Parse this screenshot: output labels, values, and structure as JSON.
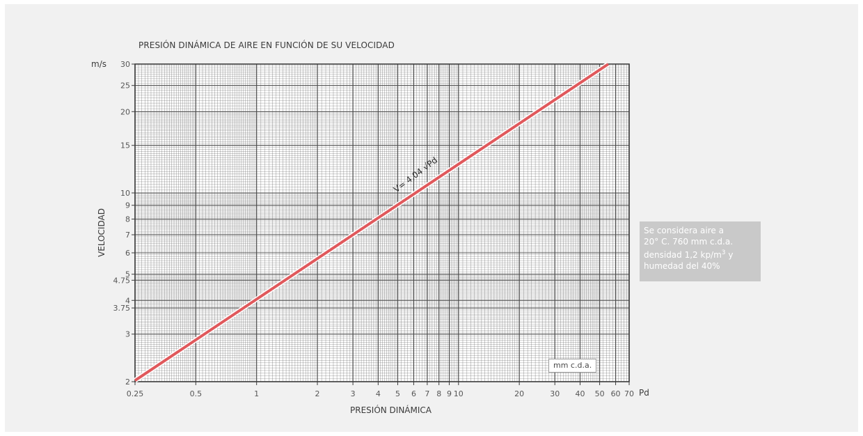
{
  "chart_data": {
    "type": "line",
    "title": "PRESIÓN DINÁMICA DE AIRE EN FUNCIÓN DE SU VELOCIDAD",
    "xlabel": "PRESIÓN DINÁMICA",
    "ylabel": "VELOCIDAD",
    "x_unit": "Pd",
    "y_unit": "m/s",
    "x_scale": "log",
    "y_scale": "log",
    "xlim": [
      0.25,
      70
    ],
    "ylim": [
      2,
      30
    ],
    "grid": true,
    "x_ticks": [
      0.25,
      0.5,
      1,
      2,
      3,
      4,
      5,
      6,
      7,
      8,
      9,
      10,
      20,
      30,
      40,
      50,
      60,
      70
    ],
    "x_tick_labels": [
      "0.25",
      "0.5",
      "1",
      "2",
      "3",
      "4",
      "5",
      "6",
      "7",
      "8",
      "9",
      "10",
      "20",
      "30",
      "40",
      "50",
      "60",
      "70"
    ],
    "y_ticks": [
      2,
      3,
      3.75,
      4,
      4.75,
      5,
      6,
      7,
      8,
      9,
      10,
      15,
      20,
      25,
      30
    ],
    "y_tick_labels": [
      "2",
      "3",
      "3.75",
      "4",
      "4.75",
      "5",
      "6",
      "7",
      "8",
      "9",
      "10",
      "15",
      "20",
      "25",
      "30"
    ],
    "series": [
      {
        "x": [
          0.25,
          1,
          4,
          10,
          20,
          40,
          55.15
        ],
        "y": [
          2.02,
          4.04,
          8.08,
          12.78,
          18.07,
          25.55,
          30
        ],
        "color": "#e0595c"
      }
    ],
    "annotation": "V= 4,04 √Pd",
    "unit_box": "mm c.d.a."
  },
  "note": {
    "lines": [
      "Se considera aire a",
      "20° C. 760 mm c.d.a.",
      "densidad 1,2 kp/m",
      "humedad del 40%"
    ],
    "superscript": "3",
    "line3_suffix": " y"
  },
  "colors": {
    "panel": "#f1f1f1",
    "plot_bg": "#ffffff",
    "grid": "#4a4a4a",
    "curve": "#e0595c",
    "note_bg": "#c9c9c9"
  }
}
